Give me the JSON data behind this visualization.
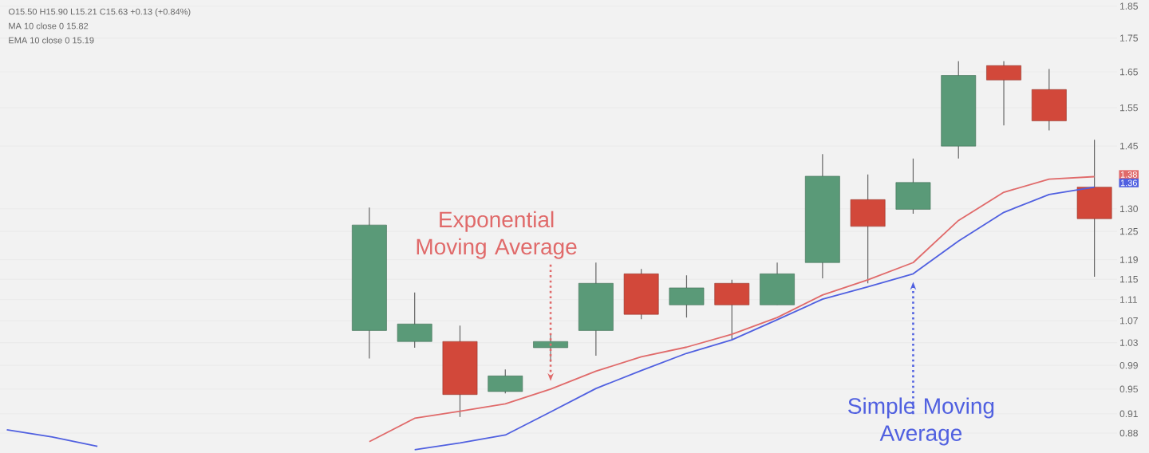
{
  "chart_data": {
    "type": "candlestick",
    "log": true,
    "grid": "y",
    "tick_labels": "y",
    "categories": [
      null,
      null,
      null,
      null,
      null,
      null,
      null,
      null,
      null,
      null,
      null,
      null,
      null,
      null,
      null,
      null,
      null,
      null,
      null,
      null,
      null,
      null,
      null,
      null,
      null
    ],
    "ohlc": [
      null,
      null,
      null,
      null,
      null,
      null,
      null,
      null,
      [
        1.052,
        1.303,
        1.002,
        1.264
      ],
      [
        1.032,
        1.124,
        1.021,
        1.064
      ],
      [
        1.032,
        1.061,
        0.905,
        0.941
      ],
      [
        0.946,
        0.983,
        0.943,
        0.972
      ],
      [
        1.021,
        1.044,
        0.996,
        1.032
      ],
      [
        1.052,
        1.184,
        1.007,
        1.142
      ],
      [
        1.161,
        1.171,
        1.073,
        1.082
      ],
      [
        1.1,
        1.158,
        1.076,
        1.133
      ],
      [
        1.142,
        1.149,
        1.035,
        1.1
      ],
      [
        1.1,
        1.184,
        1.1,
        1.161
      ],
      [
        1.184,
        1.43,
        1.152,
        1.376
      ],
      [
        1.321,
        1.38,
        1.142,
        1.261
      ],
      [
        1.299,
        1.419,
        1.289,
        1.361
      ],
      [
        1.45,
        1.681,
        1.419,
        1.64
      ],
      [
        1.668,
        1.681,
        1.503,
        1.627
      ],
      [
        1.6,
        1.658,
        1.49,
        1.515
      ],
      [
        1.35,
        1.466,
        1.155,
        1.278
      ]
    ],
    "colors": [
      null,
      null,
      null,
      null,
      null,
      null,
      null,
      null,
      "#5a9a78",
      "#5a9a78",
      "#d2483a",
      "#5a9a78",
      "#5a9a78",
      "#5a9a78",
      "#d2483a",
      "#5a9a78",
      "#d2483a",
      "#5a9a78",
      "#5a9a78",
      "#d2483a",
      "#5a9a78",
      "#5a9a78",
      "#d2483a",
      "#d2483a",
      "#d2483a"
    ],
    "series": [
      {
        "type": "line",
        "name": "Exponential Moving Average",
        "color": "#e06a6a",
        "values": [
          null,
          null,
          null,
          null,
          null,
          null,
          null,
          null,
          0.867,
          0.903,
          0.914,
          0.926,
          0.95,
          0.98,
          1.005,
          1.022,
          1.045,
          1.076,
          1.119,
          1.149,
          1.184,
          1.274,
          1.338,
          1.369,
          1.375
        ]
      },
      {
        "type": "line",
        "name": "Simple Moving Average",
        "color": "#5060e0",
        "values": [
          0.885,
          0.874,
          0.86,
          null,
          null,
          null,
          null,
          null,
          null,
          0.855,
          0.865,
          0.877,
          0.913,
          0.951,
          0.981,
          1.011,
          1.035,
          1.072,
          1.111,
          1.135,
          1.161,
          1.229,
          1.292,
          1.333,
          1.35
        ]
      }
    ],
    "ylim": [
      0.85,
      1.87
    ],
    "yticks": [
      0.88,
      0.91,
      0.95,
      0.99,
      1.03,
      1.07,
      1.11,
      1.15,
      1.19,
      1.25,
      {
        "value": 1.3,
        "label": "1.30"
      },
      1.45,
      1.55,
      1.65,
      1.75,
      1.85
    ],
    "annotations": [
      {
        "text": "1.38",
        "y": 1.38
      },
      {
        "text": "1.36",
        "y": 1.36
      },
      "O15.50 H15.90 L15.21 C15.63 +0.13 (+0.84%)",
      "MA 10 close 0 15.82",
      "EMA 10 close 0 15.19"
    ]
  }
}
